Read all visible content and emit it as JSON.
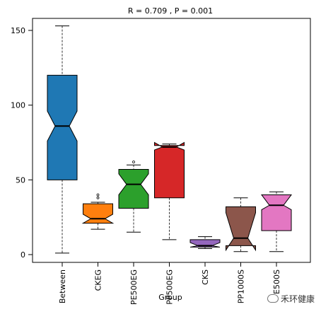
{
  "chart_data": {
    "type": "box",
    "title": "R = 0.709 , P = 0.001",
    "xlabel": "Group",
    "ylabel": "",
    "ylim": [
      -5,
      160
    ],
    "yticks": [
      0,
      50,
      100,
      150
    ],
    "notched": true,
    "grid": false,
    "categories": [
      "Between",
      "CKEG",
      "PE500EG",
      "PP500EG",
      "CKS",
      "PP1000S",
      "PE500S"
    ],
    "tick_labels": [
      "Between",
      "CKEG",
      "PE500EG",
      "PP500EG",
      "CKS",
      "PP1000S",
      "E500S"
    ],
    "boxes": [
      {
        "name": "Between",
        "color": "#1F78B4",
        "min": 1,
        "q1": 50,
        "median": 86,
        "q3": 120,
        "max": 153,
        "notch_low": 76,
        "notch_high": 96,
        "outliers": []
      },
      {
        "name": "CKEG",
        "color": "#FF7F0E",
        "min": 17,
        "q1": 21,
        "median": 24,
        "q3": 34,
        "max": 35,
        "notch_low": 21,
        "notch_high": 27,
        "outliers": [
          38,
          40
        ]
      },
      {
        "name": "PE500EG",
        "color": "#2CA02C",
        "min": 15,
        "q1": 31,
        "median": 47,
        "q3": 57,
        "max": 60,
        "notch_low": 40,
        "notch_high": 54,
        "outliers": [
          62
        ]
      },
      {
        "name": "PP500EG",
        "color": "#D62728",
        "min": 10,
        "q1": 38,
        "median": 72,
        "q3": 73,
        "max": 74,
        "notch_low": 70,
        "notch_high": 75,
        "outliers": []
      },
      {
        "name": "CKS",
        "color": "#9467BD",
        "min": 4,
        "q1": 5,
        "median": 6,
        "q3": 10,
        "max": 12,
        "notch_low": 5,
        "notch_high": 8,
        "outliers": []
      },
      {
        "name": "PP1000S",
        "color": "#8C564B",
        "min": 2,
        "q1": 6,
        "median": 11,
        "q3": 32,
        "max": 38,
        "notch_low": 3,
        "notch_high": 28,
        "outliers": []
      },
      {
        "name": "PE500S",
        "color": "#E377C2",
        "min": 2,
        "q1": 16,
        "median": 33,
        "q3": 40,
        "max": 42,
        "notch_low": 30,
        "notch_high": 40,
        "outliers": []
      }
    ]
  },
  "watermark": {
    "text": "禾环健康"
  }
}
